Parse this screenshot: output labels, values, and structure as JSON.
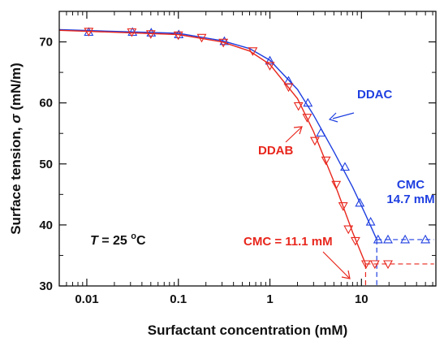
{
  "chart_data": {
    "type": "scatter",
    "title": "",
    "xlabel": "Surfactant concentration (mM)",
    "ylabel_parts": {
      "prefix": "Surface tension,",
      "symbol": "σ",
      "unit": "(mN/m)"
    },
    "xscale": "log",
    "xlim": [
      0.005,
      65
    ],
    "ylim": [
      30,
      75
    ],
    "xticks": [
      0.01,
      0.1,
      1,
      10
    ],
    "xtick_labels": [
      "0.01",
      "0.1",
      "1",
      "10"
    ],
    "yticks": [
      30,
      40,
      50,
      60,
      70
    ],
    "ytick_labels": [
      "30",
      "40",
      "50",
      "60",
      "70"
    ],
    "grid": false,
    "legend": "none (series labelled inline)",
    "condition": {
      "symbol": "T",
      "text": " = 25 ",
      "superscript": "o",
      "unit": "C"
    },
    "series": [
      {
        "name": "DDAC",
        "color": "#1f3fe0",
        "marker": "triangle-up",
        "points": [
          {
            "x": 0.0105,
            "y": 71.6
          },
          {
            "x": 0.0315,
            "y": 71.6
          },
          {
            "x": 0.0505,
            "y": 71.5
          },
          {
            "x": 0.101,
            "y": 71.2
          },
          {
            "x": 0.318,
            "y": 70.1
          },
          {
            "x": 1.0,
            "y": 66.9
          },
          {
            "x": 1.6,
            "y": 63.6
          },
          {
            "x": 2.6,
            "y": 60.0
          },
          {
            "x": 3.6,
            "y": 55.1
          },
          {
            "x": 6.6,
            "y": 49.5
          },
          {
            "x": 9.6,
            "y": 43.6
          },
          {
            "x": 12.6,
            "y": 40.5
          },
          {
            "x": 15.2,
            "y": 37.6
          },
          {
            "x": 19.5,
            "y": 37.6
          },
          {
            "x": 30.0,
            "y": 37.6
          },
          {
            "x": 50.0,
            "y": 37.6
          }
        ],
        "fit": [
          {
            "x": 0.005,
            "y": 72.0
          },
          {
            "x": 0.1,
            "y": 71.4
          },
          {
            "x": 0.3,
            "y": 70.2
          },
          {
            "x": 0.6,
            "y": 68.9
          },
          {
            "x": 1.0,
            "y": 67.0
          },
          {
            "x": 2.0,
            "y": 62.2
          },
          {
            "x": 3.0,
            "y": 58.0
          },
          {
            "x": 5.0,
            "y": 52.0
          },
          {
            "x": 8.0,
            "y": 46.2
          },
          {
            "x": 11.0,
            "y": 41.8
          },
          {
            "x": 14.7,
            "y": 37.6
          }
        ],
        "plateau": {
          "from": 14.7,
          "to": 62,
          "y": 37.6
        },
        "cmc": 14.7,
        "label": "DDAC",
        "cmc_label_lines": [
          "CMC",
          "14.7 mM"
        ]
      },
      {
        "name": "DDAB",
        "color": "#e8261c",
        "marker": "triangle-down",
        "points": [
          {
            "x": 0.0105,
            "y": 71.7
          },
          {
            "x": 0.031,
            "y": 71.6
          },
          {
            "x": 0.05,
            "y": 71.3
          },
          {
            "x": 0.1,
            "y": 71.1
          },
          {
            "x": 0.18,
            "y": 70.7
          },
          {
            "x": 0.31,
            "y": 69.9
          },
          {
            "x": 0.65,
            "y": 68.5
          },
          {
            "x": 1.0,
            "y": 66.1
          },
          {
            "x": 1.6,
            "y": 62.6
          },
          {
            "x": 2.05,
            "y": 59.5
          },
          {
            "x": 2.55,
            "y": 57.6
          },
          {
            "x": 3.1,
            "y": 53.8
          },
          {
            "x": 4.1,
            "y": 50.6
          },
          {
            "x": 5.3,
            "y": 46.6
          },
          {
            "x": 6.3,
            "y": 43.1
          },
          {
            "x": 7.2,
            "y": 39.3
          },
          {
            "x": 8.6,
            "y": 37.4
          },
          {
            "x": 11.2,
            "y": 33.6
          },
          {
            "x": 14.0,
            "y": 33.6
          },
          {
            "x": 19.5,
            "y": 33.6
          }
        ],
        "fit": [
          {
            "x": 0.005,
            "y": 71.9
          },
          {
            "x": 0.1,
            "y": 71.2
          },
          {
            "x": 0.3,
            "y": 70.0
          },
          {
            "x": 0.6,
            "y": 68.5
          },
          {
            "x": 1.0,
            "y": 66.3
          },
          {
            "x": 2.0,
            "y": 60.7
          },
          {
            "x": 3.0,
            "y": 55.3
          },
          {
            "x": 5.0,
            "y": 47.1
          },
          {
            "x": 8.0,
            "y": 38.8
          },
          {
            "x": 11.1,
            "y": 33.6
          }
        ],
        "plateau": {
          "from": 11.1,
          "to": 62,
          "y": 33.6
        },
        "cmc": 11.1,
        "label": "DDAB",
        "cmc_label_lines": [
          "CMC = 11.1 mM"
        ]
      }
    ]
  }
}
